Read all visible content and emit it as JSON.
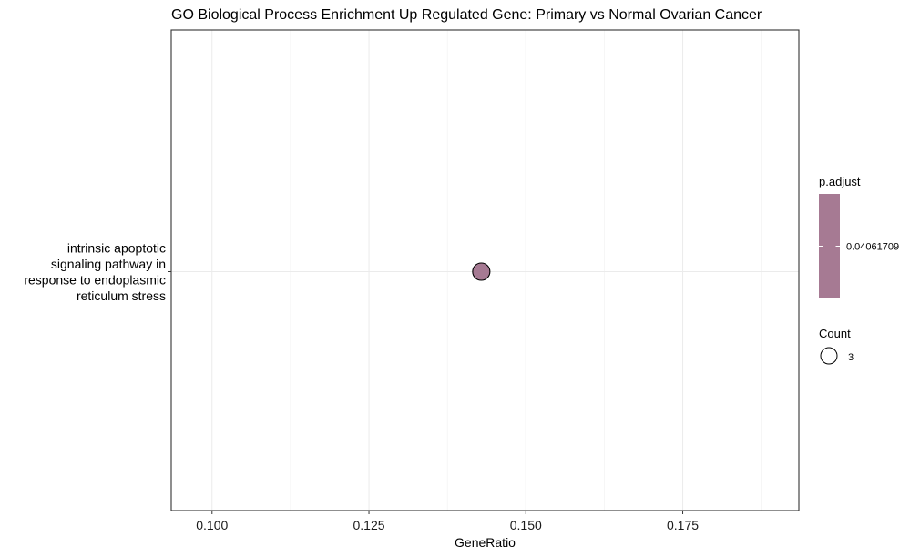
{
  "chart_data": {
    "type": "scatter",
    "title": "GO Biological Process Enrichment Up Regulated Gene: Primary vs Normal Ovarian Cancer",
    "xlabel": "GeneRatio",
    "ylabel": "",
    "xlim": [
      0.0935,
      0.1935
    ],
    "x_ticks": [
      0.1,
      0.125,
      0.15,
      0.175
    ],
    "x_tick_labels": [
      "0.100",
      "0.125",
      "0.150",
      "0.175"
    ],
    "grid": true,
    "categories": [
      [
        "intrinsic apoptotic",
        "signaling pathway in",
        "response to endoplasmic",
        "reticulum stress"
      ]
    ],
    "points": [
      {
        "category_index": 0,
        "x": 0.1429,
        "count": 3,
        "p_adjust": 0.04061709,
        "color": "#a67a93"
      }
    ],
    "legend": {
      "position": "right",
      "color": {
        "title": "p.adjust",
        "value_label": "0.04061709",
        "color": "#a67a93"
      },
      "size": {
        "title": "Count",
        "value_label": "3"
      }
    }
  }
}
